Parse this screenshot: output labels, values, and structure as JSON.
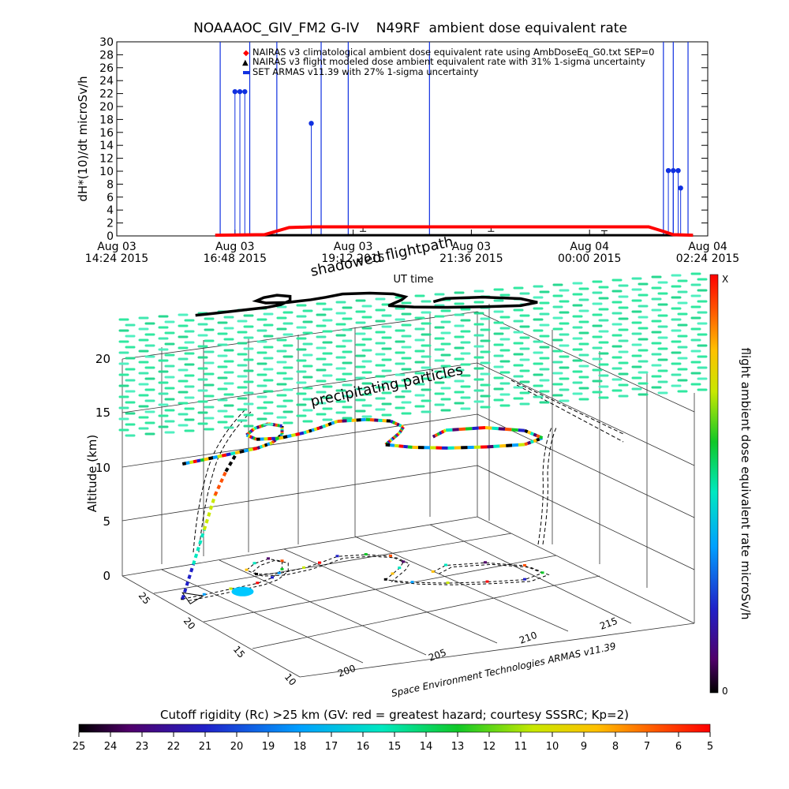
{
  "colors": {
    "red": "#ff0000",
    "blue": "#1030e0",
    "black": "#000000",
    "grid": "#555555",
    "cyan_green": "#30e8a0",
    "yellow": "#e8e000",
    "orange": "#ff8000",
    "purple": "#6000a0",
    "sky": "#00c8ff"
  },
  "top_chart": {
    "title": "NOAAAOC_GIV_FM2 G-IV    N49RF  ambient dose equivalent rate",
    "ylabel": "dH*(10)/dt microSv/h",
    "xlabel": "UT time",
    "legend": [
      "NAIRAS v3 climatological ambient dose equivalent rate using AmbDoseEq_G0.txt SEP=0",
      "NAIRAS v3 flight modeled dose ambient equivalent rate with 31% 1-sigma uncertainty",
      "SET ARMAS v11.39 with 27% 1-sigma uncertainty"
    ]
  },
  "chart_data": [
    {
      "type": "line",
      "title": "NOAAAOC_GIV_FM2 G-IV    N49RF  ambient dose equivalent rate",
      "ylabel": "dH*(10)/dt microSv/h",
      "xlabel": "UT time",
      "ylim": [
        0,
        30
      ],
      "yticks": [
        0,
        2,
        4,
        6,
        8,
        10,
        12,
        14,
        16,
        18,
        20,
        22,
        24,
        26,
        28,
        30
      ],
      "xlim_hours_from_start": [
        0,
        12
      ],
      "xticks": [
        {
          "line1": "Aug 03",
          "line2": "14:24 2015"
        },
        {
          "line1": "Aug 03",
          "line2": "16:48 2015"
        },
        {
          "line1": "Aug 03",
          "line2": "19:12 2015"
        },
        {
          "line1": "Aug 03",
          "line2": "21:36 2015"
        },
        {
          "line1": "Aug 04",
          "line2": "00:00 2015"
        },
        {
          "line1": "Aug 04",
          "line2": "02:24 2015"
        }
      ],
      "legend_position": "top",
      "series": [
        {
          "name": "NAIRAS v3 climatological ambient dose equivalent rate using AmbDoseEq_G0.txt SEP=0",
          "color": "#ff0000",
          "x": [
            2.0,
            3.0,
            3.5,
            4.0,
            5.0,
            6.0,
            7.0,
            8.0,
            9.0,
            10.0,
            10.8,
            11.1,
            11.3,
            11.7
          ],
          "y": [
            0.1,
            0.2,
            1.3,
            1.4,
            1.4,
            1.4,
            1.4,
            1.4,
            1.4,
            1.4,
            1.4,
            0.7,
            0.2,
            0.1
          ]
        },
        {
          "name": "NAIRAS v3 flight modeled dose ambient equivalent rate with 31% 1-sigma uncertainty",
          "color": "#000000",
          "x": [
            2.0,
            3.0,
            4.0,
            5.0,
            6.0,
            7.0,
            8.0,
            9.0,
            10.0,
            11.0,
            11.7
          ],
          "y": [
            0.1,
            0.1,
            0.1,
            0.1,
            0.1,
            0.1,
            0.1,
            0.1,
            0.1,
            0.1,
            0.1
          ],
          "error_bars": [
            {
              "x": 5.0,
              "y": 1.1,
              "err": 0.4
            },
            {
              "x": 7.6,
              "y": 1.1,
              "err": 0.4
            },
            {
              "x": 9.9,
              "y": 0.5,
              "err": 0.3
            }
          ]
        },
        {
          "name": "SET ARMAS v11.39 with 27% 1-sigma uncertainty",
          "color": "#1030e0",
          "spikes_x": [
            2.1,
            2.7,
            3.25,
            4.15,
            4.7,
            6.35,
            11.1,
            11.3,
            11.6
          ],
          "points": [
            {
              "x": 2.4,
              "y": 22.3
            },
            {
              "x": 2.5,
              "y": 22.3
            },
            {
              "x": 2.6,
              "y": 22.3
            },
            {
              "x": 3.95,
              "y": 17.4
            },
            {
              "x": 11.2,
              "y": 10.1
            },
            {
              "x": 11.3,
              "y": 10.1
            },
            {
              "x": 11.4,
              "y": 10.1
            },
            {
              "x": 11.45,
              "y": 7.4
            }
          ]
        }
      ]
    },
    {
      "type": "scatter",
      "title": "",
      "zlabel": "Altitude (km)",
      "zticks": [
        0,
        5,
        10,
        15,
        20
      ],
      "lat_ticks": [
        10,
        15,
        20,
        25
      ],
      "lon_ticks": [
        200,
        205,
        210,
        215
      ],
      "annotations": [
        "shadowed flightpath",
        "precipitating particles"
      ],
      "credit": "Space Environment Technologies ARMAS v11.39",
      "flight_track_lonlat": [
        [
          196.8,
          23.5
        ],
        [
          198.0,
          23.7
        ],
        [
          199.5,
          24.0
        ],
        [
          201.0,
          24.3
        ],
        [
          202.0,
          24.8
        ],
        [
          203.0,
          25.8
        ],
        [
          203.6,
          27.0
        ],
        [
          203.2,
          27.6
        ],
        [
          202.3,
          27.2
        ],
        [
          201.5,
          26.4
        ],
        [
          201.6,
          25.6
        ],
        [
          202.6,
          25.3
        ],
        [
          204.0,
          25.6
        ],
        [
          205.0,
          26.0
        ],
        [
          206.2,
          26.6
        ],
        [
          207.5,
          26.3
        ],
        [
          208.4,
          25.6
        ],
        [
          208.5,
          24.5
        ],
        [
          207.9,
          23.7
        ],
        [
          207.2,
          23.0
        ],
        [
          206.5,
          22.3
        ],
        [
          207.4,
          21.4
        ],
        [
          208.8,
          20.6
        ],
        [
          210.5,
          20.0
        ],
        [
          212.2,
          19.6
        ],
        [
          213.4,
          20.2
        ],
        [
          213.2,
          21.6
        ],
        [
          211.8,
          22.8
        ],
        [
          210.0,
          23.2
        ],
        [
          209.0,
          22.5
        ]
      ],
      "colorbar_dose": {
        "label": "flight ambient dose equivalent rate microSv/h",
        "min_label": "0",
        "max_label": "X"
      },
      "colorbar_cutoff": {
        "label": "Cutoff rigidity (Rc) >25 km (GV: red = greatest hazard; courtesy SSSRC; Kp=2)",
        "ticks": [
          25,
          24,
          23,
          22,
          21,
          20,
          19,
          18,
          17,
          16,
          15,
          14,
          13,
          12,
          11,
          10,
          9,
          8,
          7,
          6,
          5
        ]
      }
    }
  ]
}
